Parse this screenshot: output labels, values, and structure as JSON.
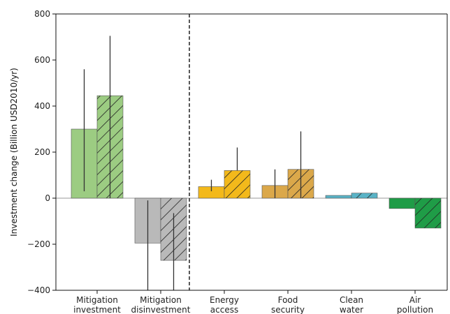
{
  "chart_data": {
    "type": "bar",
    "title": "",
    "xlabel": "",
    "ylabel": "Investment change (Billion USD2010/yr)",
    "ylim": [
      -400,
      800
    ],
    "yticks": [
      -400,
      -200,
      0,
      200,
      400,
      600,
      800
    ],
    "ytick_labels": [
      "−400",
      "−200",
      "0",
      "200",
      "400",
      "600",
      "800"
    ],
    "grid": false,
    "legend": null,
    "categories": [
      [
        "Mitigation",
        "investment"
      ],
      [
        "Mitigation",
        "disinvestment"
      ],
      [
        "Energy",
        "access"
      ],
      [
        "Food",
        "security"
      ],
      [
        "Clean",
        "water"
      ],
      [
        "Air",
        "pollution"
      ]
    ],
    "series": [
      {
        "hatch": false,
        "values": [
          300,
          -195,
          50,
          55,
          12,
          -45
        ],
        "error_low": [
          30,
          -400,
          30,
          0,
          12,
          -45
        ],
        "error_high": [
          560,
          -10,
          80,
          125,
          12,
          -45
        ]
      },
      {
        "hatch": true,
        "values": [
          445,
          -270,
          120,
          125,
          22,
          -130
        ],
        "error_low": [
          0,
          -400,
          120,
          0,
          22,
          -130
        ],
        "error_high": [
          705,
          -65,
          220,
          290,
          22,
          -130
        ]
      }
    ],
    "bar_colors": [
      "#9ccc82",
      "#b9b9b9",
      "#f3b91b",
      "#dba84a",
      "#59b3c6",
      "#1f9c47"
    ],
    "divider_after_index": 1
  }
}
